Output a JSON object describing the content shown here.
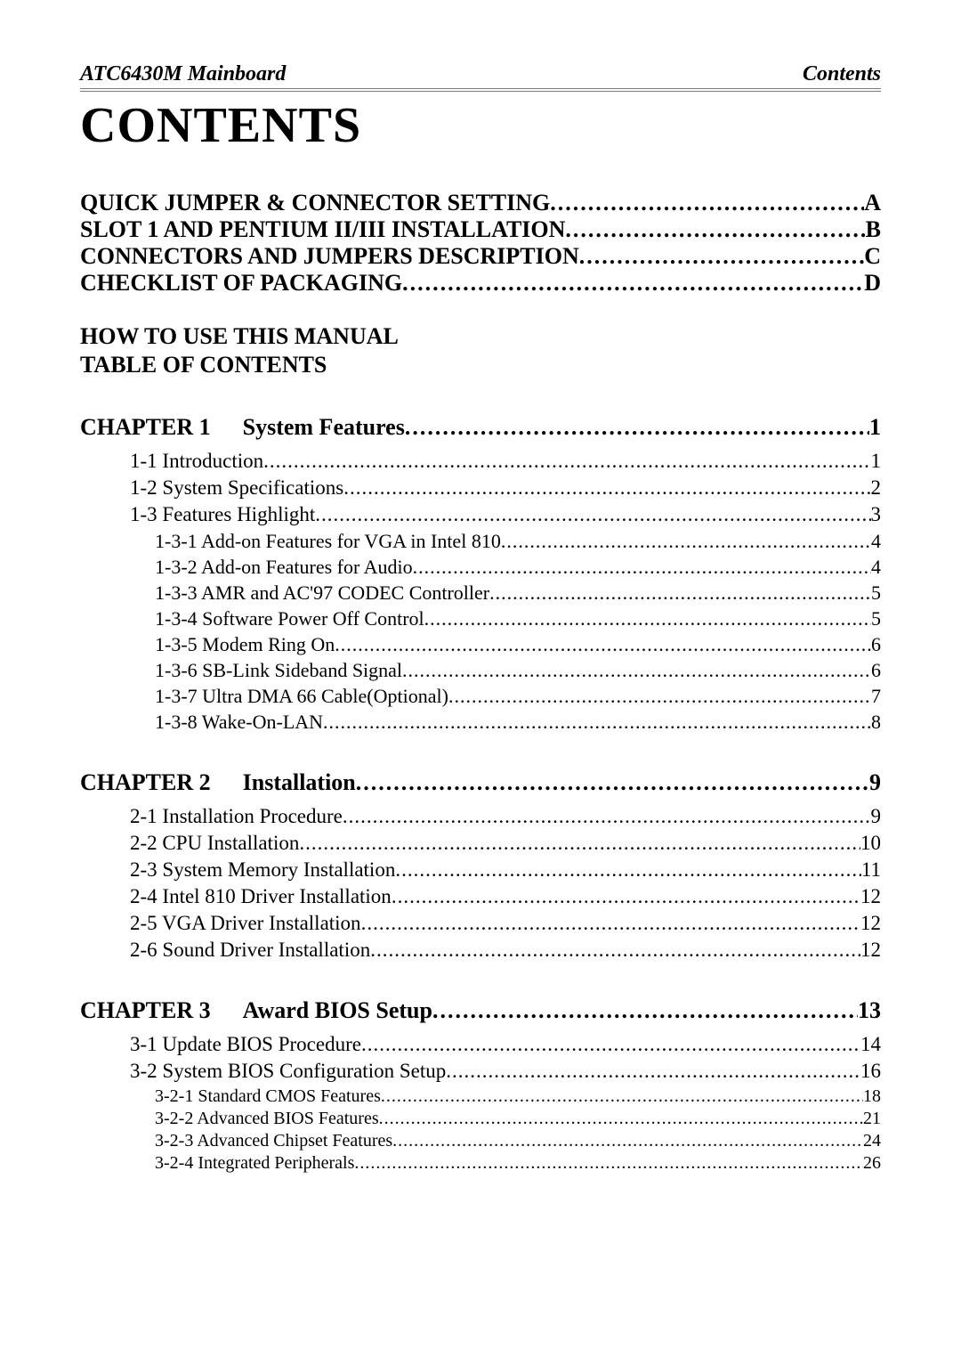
{
  "header": {
    "left": "ATC6430M  Mainboard",
    "right": "Contents"
  },
  "title": "CONTENTS",
  "front": [
    {
      "label": "QUICK JUMPER & CONNECTOR SETTING",
      "page": "A"
    },
    {
      "label": "SLOT 1 AND PENTIUM II/III INSTALLATION",
      "page": "B"
    },
    {
      "label": "CONNECTORS AND JUMPERS DESCRIPTION",
      "page": "C"
    },
    {
      "label": "CHECKLIST OF PACKAGING",
      "page": "D"
    }
  ],
  "section_heads": [
    "HOW TO USE THIS MANUAL",
    "TABLE OF CONTENTS"
  ],
  "chapters": [
    {
      "chap": "CHAPTER 1",
      "title": "System Features",
      "page": "1",
      "entries": [
        {
          "label": "1-1 Introduction",
          "page": "1"
        },
        {
          "label": "1-2 System Specifications",
          "page": "2"
        },
        {
          "label": "1-3 Features Highlight",
          "page": "3",
          "subs": [
            {
              "label": "1-3-1 Add-on Features for VGA in Intel 810",
              "page": "4"
            },
            {
              "label": "1-3-2 Add-on Features for Audio",
              "page": "4"
            },
            {
              "label": "1-3-3 AMR and AC'97 CODEC Controller",
              "page": "5"
            },
            {
              "label": "1-3-4 Software Power Off Control",
              "page": "5"
            },
            {
              "label": "1-3-5 Modem Ring On",
              "page": "6"
            },
            {
              "label": "1-3-6 SB-Link Sideband Signal",
              "page": "6"
            },
            {
              "label": "1-3-7 Ultra DMA 66 Cable(Optional)",
              "page": "7"
            },
            {
              "label": "1-3-8 Wake-On-LAN",
              "page": "8"
            }
          ]
        }
      ]
    },
    {
      "chap": "CHAPTER 2",
      "title": "Installation",
      "page": "9",
      "entries": [
        {
          "label": "2-1 Installation Procedure",
          "page": "9"
        },
        {
          "label": "2-2 CPU Installation",
          "page": "10"
        },
        {
          "label": "2-3 System Memory Installation",
          "page": "11"
        },
        {
          "label": "2-4 Intel 810 Driver Installation",
          "page": "12"
        },
        {
          "label": "2-5 VGA Driver Installation",
          "page": "12"
        },
        {
          "label": "2-6 Sound Driver Installation",
          "page": "12"
        }
      ]
    },
    {
      "chap": "CHAPTER 3",
      "title": "Award BIOS Setup",
      "page": "13",
      "entries": [
        {
          "label": "3-1 Update BIOS Procedure",
          "page": "14"
        },
        {
          "label": "3-2 System BIOS Configuration Setup",
          "page": "16",
          "subsubs": [
            {
              "label": "3-2-1 Standard CMOS Features",
              "page": "18"
            },
            {
              "label": "3-2-2 Advanced BIOS Features",
              "page": "21"
            },
            {
              "label": "3-2-3 Advanced Chipset Features",
              "page": "24"
            },
            {
              "label": "3-2-4 Integrated Peripherals",
              "page": "26"
            }
          ]
        }
      ]
    }
  ]
}
